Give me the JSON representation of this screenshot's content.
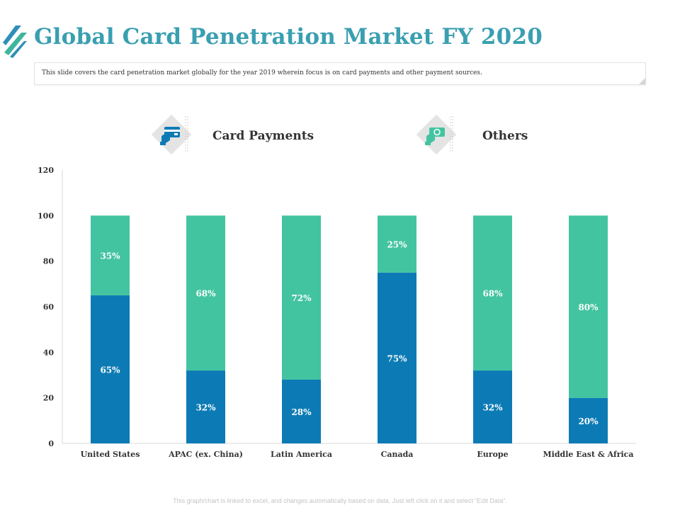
{
  "header": {
    "title": "Global Card Penetration Market FY 2020",
    "subtitle": "This slide covers the card penetration market globally for the year 2019 wherein focus is on card payments and other payment sources."
  },
  "legend": {
    "card_payments": {
      "label": "Card Payments",
      "icon": "credit-card-hand-icon",
      "color": "#0c7bb5"
    },
    "others": {
      "label": "Others",
      "icon": "cash-hand-icon",
      "color": "#43c4a0"
    }
  },
  "chart_data": {
    "type": "bar",
    "stacked": true,
    "categories": [
      "United States",
      "APAC (ex. China)",
      "Latin America",
      "Canada",
      "Europe",
      "Middle East & Africa"
    ],
    "series": [
      {
        "name": "Card Payments",
        "values": [
          65,
          32,
          28,
          75,
          32,
          20
        ],
        "labels": [
          "65%",
          "32%",
          "28%",
          "75%",
          "32%",
          "20%"
        ],
        "color": "#0c7bb5"
      },
      {
        "name": "Others",
        "values": [
          35,
          68,
          72,
          25,
          68,
          80
        ],
        "labels": [
          "35%",
          "68%",
          "72%",
          "25%",
          "68%",
          "80%"
        ],
        "color": "#43c4a0"
      }
    ],
    "ylim": [
      0,
      120
    ],
    "yticks": [
      "0",
      "20",
      "40",
      "60",
      "80",
      "100",
      "120"
    ],
    "title": "",
    "xlabel": "",
    "ylabel": "",
    "grid": false
  },
  "footer": {
    "note": "This graph/chart is linked to excel, and changes automatically based on data. Just left click on it and select “Edit Data”."
  }
}
